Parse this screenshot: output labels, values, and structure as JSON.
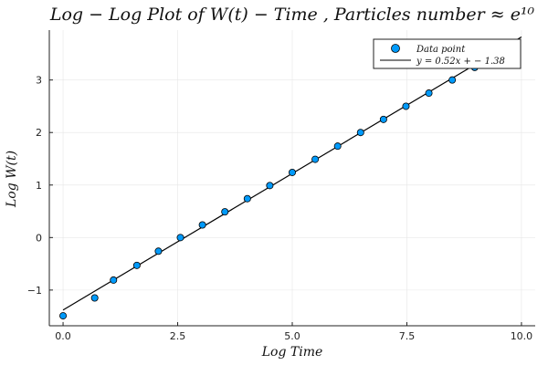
{
  "chart_data": {
    "type": "scatter",
    "title": "Log − Log Plot of  W(t) − Time , Particles number ≈ e¹⁰",
    "xlabel": "Log Time",
    "ylabel": "Log W(t)",
    "xlim": [
      -0.3,
      10.3
    ],
    "ylim": [
      -1.68,
      3.95
    ],
    "xticks": [
      0,
      2.5,
      5,
      7.5,
      10
    ],
    "xtick_labels": [
      "0.0",
      "2.5",
      "5.0",
      "7.5",
      "10.0"
    ],
    "yticks": [
      -1,
      0,
      1,
      2,
      3
    ],
    "ytick_labels": [
      "−1",
      "0",
      "1",
      "2",
      "3"
    ],
    "grid": true,
    "legend_position": "top-right",
    "series": [
      {
        "name": "Data point",
        "kind": "scatter",
        "color": "#009AFA",
        "x": [
          0.0,
          0.69,
          1.1,
          1.61,
          2.08,
          2.56,
          3.04,
          3.53,
          4.02,
          4.51,
          5.0,
          5.5,
          5.99,
          6.49,
          6.99,
          7.48,
          7.98,
          8.49,
          8.98
        ],
        "y": [
          -1.49,
          -1.15,
          -0.81,
          -0.53,
          -0.26,
          0.0,
          0.24,
          0.49,
          0.74,
          0.99,
          1.24,
          1.49,
          1.74,
          2.0,
          2.25,
          2.5,
          2.75,
          3.0,
          3.24
        ]
      },
      {
        "name": "y = 0.52x +  − 1.38",
        "kind": "line",
        "color": "#000000",
        "slope": 0.52,
        "intercept": -1.38,
        "x_range": [
          0.0,
          10.0
        ]
      }
    ]
  }
}
